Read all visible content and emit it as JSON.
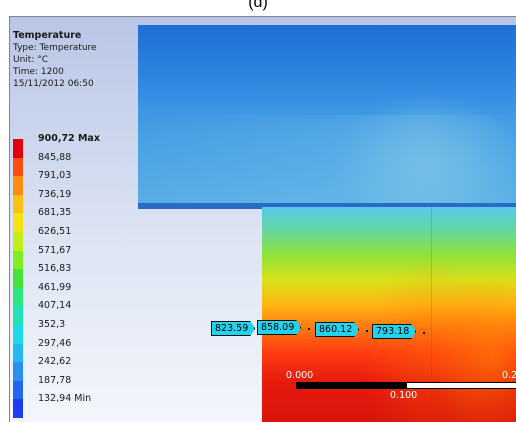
{
  "caption": "(d)",
  "legend": {
    "title": "Temperature",
    "type": "Type: Temperature",
    "unit": "Unit: °C",
    "time": "Time: 1200",
    "datetime": "15/11/2012 06:50",
    "levels": [
      {
        "label": "900,72 Max",
        "color": "#e2000e"
      },
      {
        "label": "845,88",
        "color": "#ff4d14"
      },
      {
        "label": "791,03",
        "color": "#ff8a14"
      },
      {
        "label": "736,19",
        "color": "#ffc014"
      },
      {
        "label": "681,35",
        "color": "#f4e214"
      },
      {
        "label": "626,51",
        "color": "#c2ef18"
      },
      {
        "label": "571,67",
        "color": "#84ec22"
      },
      {
        "label": "516,83",
        "color": "#45e23c"
      },
      {
        "label": "461,99",
        "color": "#2de67e"
      },
      {
        "label": "407,14",
        "color": "#22e0b8"
      },
      {
        "label": "352,3",
        "color": "#1fd9e8"
      },
      {
        "label": "297,46",
        "color": "#26b8f0"
      },
      {
        "label": "242,62",
        "color": "#2b8ff0"
      },
      {
        "label": "187,78",
        "color": "#2366f0"
      },
      {
        "label": "132,94 Min",
        "color": "#1e3cf0"
      }
    ]
  },
  "probes": [
    {
      "value": "823.59"
    },
    {
      "value": "858.09"
    },
    {
      "value": "860.12"
    },
    {
      "value": "793.18"
    }
  ],
  "scale": {
    "start": "0.000",
    "end": "0.2",
    "mid": "0.100"
  }
}
